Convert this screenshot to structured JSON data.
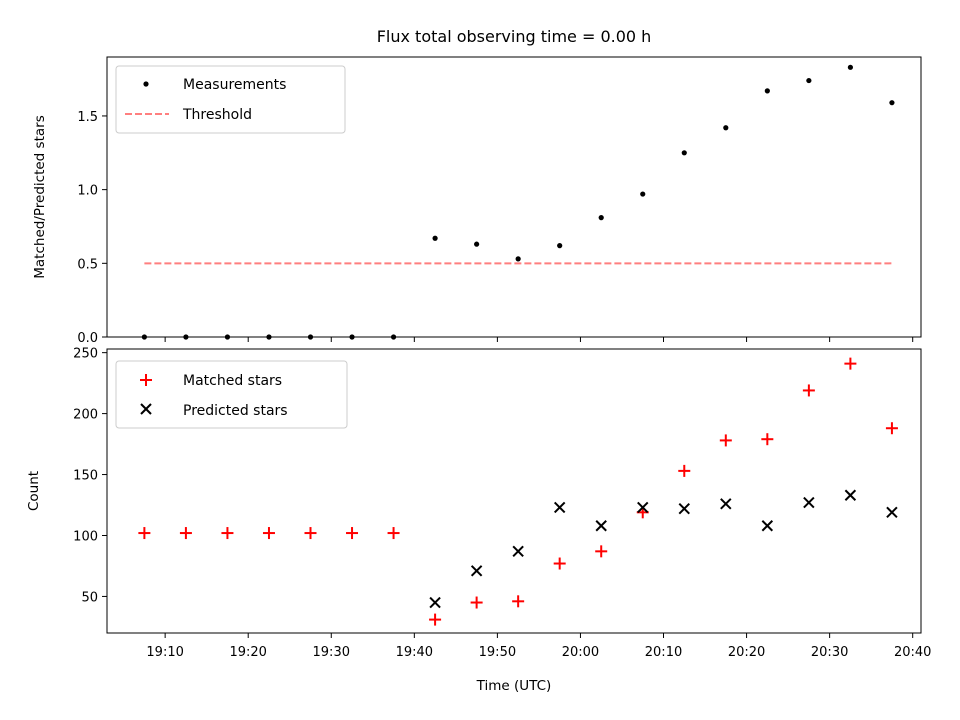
{
  "title": "Flux total observing time = 0.00 h",
  "colors": {
    "threshold": "#ff7f7f",
    "matched": "#ff0000",
    "predicted": "#000000",
    "measurements": "#000000"
  },
  "chart_data": [
    {
      "type": "scatter",
      "ylabel": "Matched/Predicted stars",
      "xlim": [
        "19:03",
        "20:41"
      ],
      "ylim": [
        0,
        1.9
      ],
      "yticks": [
        0.0,
        0.5,
        1.0,
        1.5
      ],
      "ytick_labels": [
        "0.0",
        "0.5",
        "1.0",
        "1.5"
      ],
      "legend": {
        "placement": "top-left",
        "items": [
          "Measurements",
          "Threshold"
        ]
      },
      "series": [
        {
          "name": "Measurements",
          "marker": "dot",
          "x": [
            "19:07:30",
            "19:12:30",
            "19:17:30",
            "19:22:30",
            "19:27:30",
            "19:32:30",
            "19:37:30",
            "19:42:30",
            "19:47:30",
            "19:52:30",
            "19:57:30",
            "20:02:30",
            "20:07:30",
            "20:12:30",
            "20:17:30",
            "20:22:30",
            "20:27:30",
            "20:32:30",
            "20:37:30"
          ],
          "y": [
            0,
            0,
            0,
            0,
            0,
            0,
            0,
            0.67,
            0.63,
            0.53,
            0.62,
            0.81,
            0.97,
            1.25,
            1.42,
            1.67,
            1.74,
            1.83,
            1.59
          ]
        },
        {
          "name": "Threshold",
          "style": "dashed-line",
          "x": [
            "19:07:30",
            "20:37:30"
          ],
          "y": [
            0.5,
            0.5
          ]
        }
      ]
    },
    {
      "type": "scatter",
      "xlabel": "Time (UTC)",
      "ylabel": "Count",
      "xlim": [
        "19:03",
        "20:41"
      ],
      "ylim": [
        20,
        253
      ],
      "xticks": [
        "19:10",
        "19:20",
        "19:30",
        "19:40",
        "19:50",
        "20:00",
        "20:10",
        "20:20",
        "20:30",
        "20:40"
      ],
      "yticks": [
        50,
        100,
        150,
        200,
        250
      ],
      "ytick_labels": [
        "50",
        "100",
        "150",
        "200",
        "250"
      ],
      "legend": {
        "placement": "top-left",
        "items": [
          "Matched stars",
          "Predicted stars"
        ]
      },
      "series": [
        {
          "name": "Matched stars",
          "marker": "plus",
          "x": [
            "19:07:30",
            "19:12:30",
            "19:17:30",
            "19:22:30",
            "19:27:30",
            "19:32:30",
            "19:37:30",
            "19:42:30",
            "19:47:30",
            "19:52:30",
            "19:57:30",
            "20:02:30",
            "20:07:30",
            "20:12:30",
            "20:17:30",
            "20:22:30",
            "20:27:30",
            "20:32:30",
            "20:37:30"
          ],
          "y": [
            102,
            102,
            102,
            102,
            102,
            102,
            102,
            31,
            45,
            46,
            77,
            87,
            119,
            153,
            178,
            179,
            219,
            241,
            188
          ]
        },
        {
          "name": "Predicted stars",
          "marker": "x",
          "x": [
            "19:42:30",
            "19:47:30",
            "19:52:30",
            "19:57:30",
            "20:02:30",
            "20:07:30",
            "20:12:30",
            "20:17:30",
            "20:22:30",
            "20:27:30",
            "20:32:30",
            "20:37:30"
          ],
          "y": [
            45,
            71,
            87,
            123,
            108,
            123,
            122,
            126,
            108,
            127,
            133,
            119
          ]
        }
      ]
    }
  ]
}
